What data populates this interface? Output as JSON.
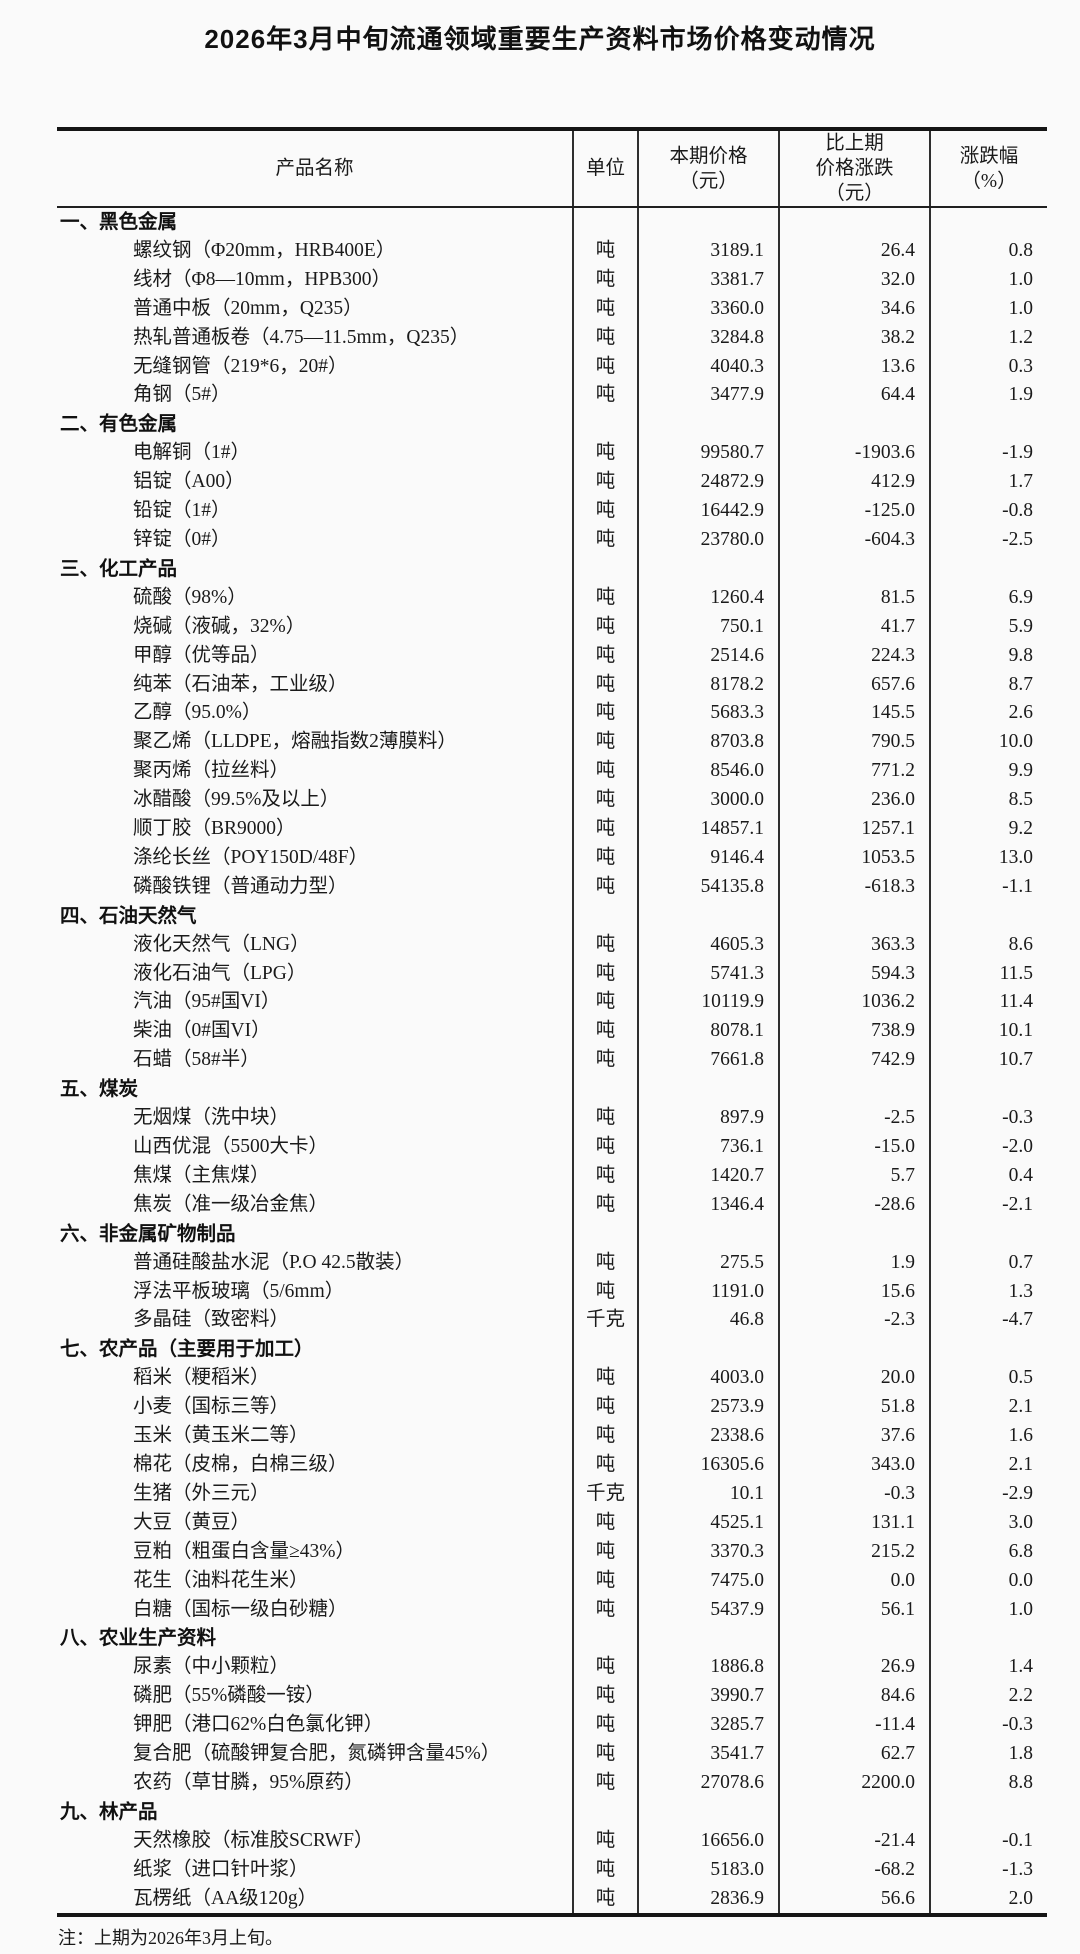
{
  "page": {
    "title": "2026年3月中旬流通领域重要生产资料市场价格变动情况",
    "note": "注：上期为2026年3月上旬。"
  },
  "colors": {
    "text": "#1a1a1a",
    "border": "#151515",
    "background": "#fafafa"
  },
  "table": {
    "headers": {
      "product": "产品名称",
      "unit": "单位",
      "price": "本期价格\n（元）",
      "change": "比上期\n价格涨跌\n（元）",
      "pct": "涨跌幅\n（%）"
    },
    "fields": [
      "product",
      "unit",
      "price",
      "change",
      "pct"
    ],
    "sections": [
      {
        "name": "一、黑色金属",
        "rows": [
          [
            "螺纹钢（Φ20mm，HRB400E）",
            "吨",
            "3189.1",
            "26.4",
            "0.8"
          ],
          [
            "线材（Φ8—10mm，HPB300）",
            "吨",
            "3381.7",
            "32.0",
            "1.0"
          ],
          [
            "普通中板（20mm，Q235）",
            "吨",
            "3360.0",
            "34.6",
            "1.0"
          ],
          [
            "热轧普通板卷（4.75—11.5mm，Q235）",
            "吨",
            "3284.8",
            "38.2",
            "1.2"
          ],
          [
            "无缝钢管（219*6，20#）",
            "吨",
            "4040.3",
            "13.6",
            "0.3"
          ],
          [
            "角钢（5#）",
            "吨",
            "3477.9",
            "64.4",
            "1.9"
          ]
        ]
      },
      {
        "name": "二、有色金属",
        "rows": [
          [
            "电解铜（1#）",
            "吨",
            "99580.7",
            "-1903.6",
            "-1.9"
          ],
          [
            "铝锭（A00）",
            "吨",
            "24872.9",
            "412.9",
            "1.7"
          ],
          [
            "铅锭（1#）",
            "吨",
            "16442.9",
            "-125.0",
            "-0.8"
          ],
          [
            "锌锭（0#）",
            "吨",
            "23780.0",
            "-604.3",
            "-2.5"
          ]
        ]
      },
      {
        "name": "三、化工产品",
        "rows": [
          [
            "硫酸（98%）",
            "吨",
            "1260.4",
            "81.5",
            "6.9"
          ],
          [
            "烧碱（液碱，32%）",
            "吨",
            "750.1",
            "41.7",
            "5.9"
          ],
          [
            "甲醇（优等品）",
            "吨",
            "2514.6",
            "224.3",
            "9.8"
          ],
          [
            "纯苯（石油苯，工业级）",
            "吨",
            "8178.2",
            "657.6",
            "8.7"
          ],
          [
            "乙醇（95.0%）",
            "吨",
            "5683.3",
            "145.5",
            "2.6"
          ],
          [
            "聚乙烯（LLDPE，熔融指数2薄膜料）",
            "吨",
            "8703.8",
            "790.5",
            "10.0"
          ],
          [
            "聚丙烯（拉丝料）",
            "吨",
            "8546.0",
            "771.2",
            "9.9"
          ],
          [
            "冰醋酸（99.5%及以上）",
            "吨",
            "3000.0",
            "236.0",
            "8.5"
          ],
          [
            "顺丁胶（BR9000）",
            "吨",
            "14857.1",
            "1257.1",
            "9.2"
          ],
          [
            "涤纶长丝（POY150D/48F）",
            "吨",
            "9146.4",
            "1053.5",
            "13.0"
          ],
          [
            "磷酸铁锂（普通动力型）",
            "吨",
            "54135.8",
            "-618.3",
            "-1.1"
          ]
        ]
      },
      {
        "name": "四、石油天然气",
        "rows": [
          [
            "液化天然气（LNG）",
            "吨",
            "4605.3",
            "363.3",
            "8.6"
          ],
          [
            "液化石油气（LPG）",
            "吨",
            "5741.3",
            "594.3",
            "11.5"
          ],
          [
            "汽油（95#国VI）",
            "吨",
            "10119.9",
            "1036.2",
            "11.4"
          ],
          [
            "柴油（0#国VI）",
            "吨",
            "8078.1",
            "738.9",
            "10.1"
          ],
          [
            "石蜡（58#半）",
            "吨",
            "7661.8",
            "742.9",
            "10.7"
          ]
        ]
      },
      {
        "name": "五、煤炭",
        "rows": [
          [
            "无烟煤（洗中块）",
            "吨",
            "897.9",
            "-2.5",
            "-0.3"
          ],
          [
            "山西优混（5500大卡）",
            "吨",
            "736.1",
            "-15.0",
            "-2.0"
          ],
          [
            "焦煤（主焦煤）",
            "吨",
            "1420.7",
            "5.7",
            "0.4"
          ],
          [
            "焦炭（准一级冶金焦）",
            "吨",
            "1346.4",
            "-28.6",
            "-2.1"
          ]
        ]
      },
      {
        "name": "六、非金属矿物制品",
        "rows": [
          [
            "普通硅酸盐水泥（P.O 42.5散装）",
            "吨",
            "275.5",
            "1.9",
            "0.7"
          ],
          [
            "浮法平板玻璃（5/6mm）",
            "吨",
            "1191.0",
            "15.6",
            "1.3"
          ],
          [
            "多晶硅（致密料）",
            "千克",
            "46.8",
            "-2.3",
            "-4.7"
          ]
        ]
      },
      {
        "name": "七、农产品（主要用于加工）",
        "rows": [
          [
            "稻米（粳稻米）",
            "吨",
            "4003.0",
            "20.0",
            "0.5"
          ],
          [
            "小麦（国标三等）",
            "吨",
            "2573.9",
            "51.8",
            "2.1"
          ],
          [
            "玉米（黄玉米二等）",
            "吨",
            "2338.6",
            "37.6",
            "1.6"
          ],
          [
            "棉花（皮棉，白棉三级）",
            "吨",
            "16305.6",
            "343.0",
            "2.1"
          ],
          [
            "生猪（外三元）",
            "千克",
            "10.1",
            "-0.3",
            "-2.9"
          ],
          [
            "大豆（黄豆）",
            "吨",
            "4525.1",
            "131.1",
            "3.0"
          ],
          [
            "豆粕（粗蛋白含量≥43%）",
            "吨",
            "3370.3",
            "215.2",
            "6.8"
          ],
          [
            "花生（油料花生米）",
            "吨",
            "7475.0",
            "0.0",
            "0.0"
          ],
          [
            "白糖（国标一级白砂糖）",
            "吨",
            "5437.9",
            "56.1",
            "1.0"
          ]
        ]
      },
      {
        "name": "八、农业生产资料",
        "rows": [
          [
            "尿素（中小颗粒）",
            "吨",
            "1886.8",
            "26.9",
            "1.4"
          ],
          [
            "磷肥（55%磷酸一铵）",
            "吨",
            "3990.7",
            "84.6",
            "2.2"
          ],
          [
            "钾肥（港口62%白色氯化钾）",
            "吨",
            "3285.7",
            "-11.4",
            "-0.3"
          ],
          [
            "复合肥（硫酸钾复合肥，氮磷钾含量45%）",
            "吨",
            "3541.7",
            "62.7",
            "1.8"
          ],
          [
            "农药（草甘膦，95%原药）",
            "吨",
            "27078.6",
            "2200.0",
            "8.8"
          ]
        ]
      },
      {
        "name": "九、林产品",
        "rows": [
          [
            "天然橡胶（标准胶SCRWF）",
            "吨",
            "16656.0",
            "-21.4",
            "-0.1"
          ],
          [
            "纸浆（进口针叶浆）",
            "吨",
            "5183.0",
            "-68.2",
            "-1.3"
          ],
          [
            "瓦楞纸（AA级120g）",
            "吨",
            "2836.9",
            "56.6",
            "2.0"
          ]
        ]
      }
    ]
  }
}
